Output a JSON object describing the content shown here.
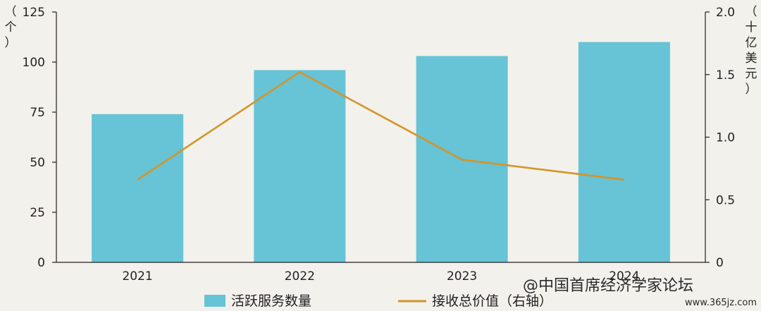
{
  "chart_data": {
    "type": "bar",
    "categories": [
      "2021",
      "2022",
      "2023",
      "2024"
    ],
    "series": [
      {
        "name": "活跃服务数量",
        "kind": "bar",
        "axis": "left",
        "values": [
          74,
          96,
          103,
          110
        ],
        "color": "#67c3d6"
      },
      {
        "name": "接收总价值（右轴）",
        "kind": "line",
        "axis": "right",
        "values": [
          0.66,
          1.52,
          0.82,
          0.66
        ],
        "color": "#d4952a"
      }
    ],
    "left_axis": {
      "unit": "（个）",
      "ylim": [
        0,
        125
      ],
      "ticks": [
        0,
        25,
        50,
        75,
        100,
        125
      ]
    },
    "right_axis": {
      "unit": "（十亿美元）",
      "ylim": [
        0,
        2.0
      ],
      "ticks": [
        "0",
        "0.5",
        "1.0",
        "1.5",
        "2.0"
      ],
      "tick_values": [
        0,
        0.5,
        1.0,
        1.5,
        2.0
      ]
    },
    "grid": false,
    "legend_position": "bottom"
  },
  "watermark": {
    "text": "@中国首席经济学家论坛",
    "url": "www.365jz.com"
  }
}
